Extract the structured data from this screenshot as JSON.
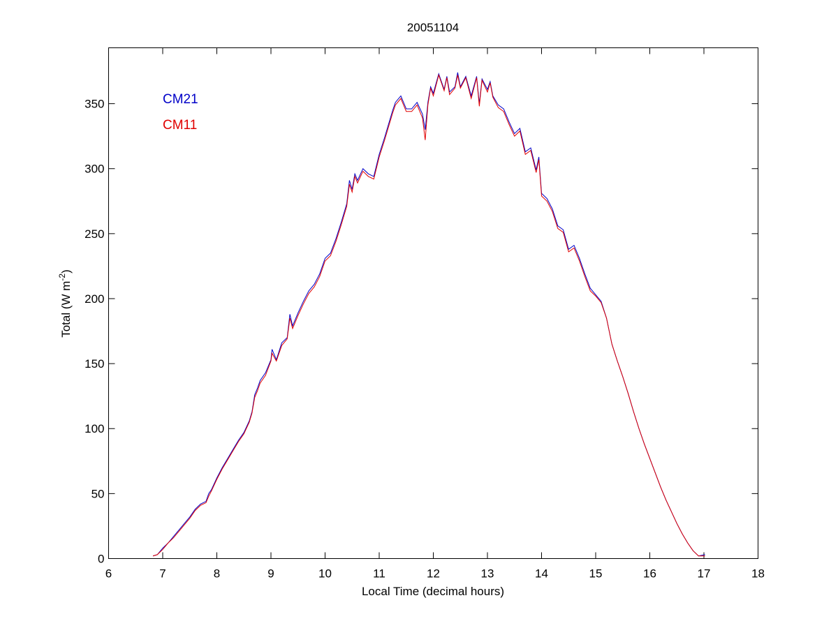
{
  "chart_data": {
    "type": "line",
    "title": "20051104",
    "x_label": "Local Time (decimal hours)",
    "y_label": {
      "text": "Total (W m",
      "superscript": "-2",
      "suffix": ")"
    },
    "xlim": [
      6,
      18
    ],
    "xticks": [
      6,
      7,
      8,
      9,
      10,
      11,
      12,
      13,
      14,
      15,
      16,
      17,
      18
    ],
    "ylim": [
      0,
      393
    ],
    "yticks": [
      0,
      50,
      100,
      150,
      200,
      250,
      300,
      350
    ],
    "legend_position": "upper-left",
    "x": [
      6.82,
      6.9,
      7.0,
      7.1,
      7.2,
      7.3,
      7.4,
      7.5,
      7.6,
      7.7,
      7.8,
      7.85,
      7.9,
      8.0,
      8.1,
      8.2,
      8.3,
      8.4,
      8.5,
      8.6,
      8.65,
      8.7,
      8.75,
      8.8,
      8.9,
      9.0,
      9.02,
      9.1,
      9.2,
      9.3,
      9.35,
      9.4,
      9.5,
      9.6,
      9.7,
      9.8,
      9.9,
      10.0,
      10.1,
      10.2,
      10.3,
      10.4,
      10.45,
      10.5,
      10.55,
      10.6,
      10.7,
      10.8,
      10.9,
      11.0,
      11.1,
      11.2,
      11.25,
      11.3,
      11.4,
      11.5,
      11.6,
      11.7,
      11.8,
      11.85,
      11.9,
      11.95,
      12.0,
      12.1,
      12.2,
      12.25,
      12.3,
      12.4,
      12.45,
      12.5,
      12.6,
      12.7,
      12.8,
      12.85,
      12.9,
      13.0,
      13.05,
      13.1,
      13.2,
      13.3,
      13.4,
      13.5,
      13.6,
      13.7,
      13.8,
      13.9,
      13.95,
      14.0,
      14.1,
      14.2,
      14.3,
      14.4,
      14.5,
      14.6,
      14.7,
      14.8,
      14.9,
      15.0,
      15.1,
      15.2,
      15.3,
      15.4,
      15.5,
      15.6,
      15.7,
      15.8,
      15.9,
      16.0,
      16.1,
      16.2,
      16.3,
      16.4,
      16.5,
      16.6,
      16.7,
      16.8,
      16.9,
      17.02
    ],
    "series": [
      {
        "name": "CM21",
        "color": "#0000c8",
        "values": [
          2,
          3,
          8,
          12,
          17,
          22,
          27,
          32,
          38,
          42,
          44,
          50,
          53,
          62,
          70,
          77,
          84,
          91,
          97,
          106,
          113,
          126,
          131,
          137,
          143,
          153,
          161,
          153,
          166,
          170,
          188,
          179,
          189,
          198,
          206,
          211,
          219,
          231,
          235,
          246,
          259,
          273,
          291,
          284,
          296,
          291,
          300,
          296,
          294,
          311,
          324,
          338,
          345,
          351,
          356,
          346,
          346,
          351,
          342,
          330,
          351,
          363,
          358,
          373,
          361,
          371,
          359,
          363,
          374,
          363,
          371,
          356,
          371,
          350,
          369,
          361,
          367,
          356,
          349,
          346,
          336,
          327,
          331,
          313,
          316,
          299,
          309,
          281,
          277,
          269,
          256,
          253,
          238,
          241,
          231,
          219,
          208,
          203,
          198,
          185,
          165,
          152,
          140,
          127,
          113,
          100,
          88,
          77,
          66,
          55,
          45,
          36,
          27,
          19,
          12,
          6,
          2,
          3
        ]
      },
      {
        "name": "CM11",
        "color": "#e00000",
        "values": [
          2,
          3,
          7,
          12,
          16,
          21,
          26,
          31,
          37,
          41,
          43,
          48,
          52,
          61,
          69,
          76,
          83,
          90,
          96,
          105,
          112,
          124,
          129,
          135,
          141,
          152,
          158,
          152,
          164,
          169,
          185,
          177,
          187,
          196,
          204,
          209,
          217,
          229,
          233,
          244,
          257,
          271,
          288,
          282,
          294,
          289,
          298,
          294,
          292,
          309,
          322,
          336,
          343,
          349,
          354,
          344,
          344,
          349,
          339,
          322,
          349,
          362,
          356,
          372,
          360,
          370,
          357,
          362,
          372,
          362,
          370,
          354,
          370,
          348,
          368,
          359,
          366,
          355,
          347,
          344,
          334,
          325,
          329,
          311,
          314,
          297,
          307,
          279,
          275,
          267,
          254,
          251,
          236,
          239,
          229,
          217,
          206,
          202,
          197,
          185,
          165,
          152,
          140,
          127,
          113,
          100,
          88,
          77,
          66,
          55,
          45,
          36,
          27,
          19,
          12,
          6,
          2,
          2
        ]
      }
    ]
  }
}
